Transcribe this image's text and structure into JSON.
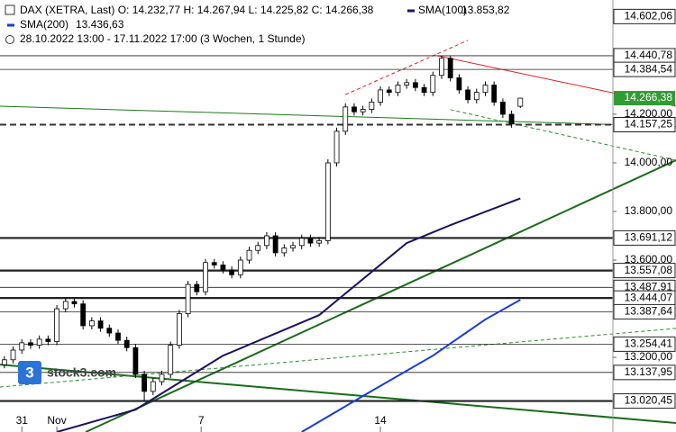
{
  "chart_data": {
    "type": "candlestick",
    "title": "DAX (XETRA, Last)",
    "quote": [
      {
        "key": "O:",
        "value": 14232.77,
        "label": "14.232,77"
      },
      {
        "key": "H:",
        "value": 14267.94,
        "label": "14.267,94"
      },
      {
        "key": "L:",
        "value": 14225.82,
        "label": "14.225,82"
      },
      {
        "key": "C:",
        "value": 14266.38,
        "label": "14.266,38"
      }
    ],
    "period": "28.10.2022 13:00 - 17.11.2022 17:00",
    "interval": "(3 Wochen, 1 Stunde)",
    "xlim": [
      -0.5,
      76.8
    ],
    "ylim": [
      12893,
      14670
    ],
    "xticks": [
      {
        "value": 2,
        "label": "31"
      },
      {
        "value": 6,
        "label": "Nov"
      },
      {
        "value": 22.5,
        "label": "7"
      },
      {
        "value": 43,
        "label": "14"
      }
    ],
    "yticks": [
      {
        "value": 13200,
        "label": "13.200,00"
      },
      {
        "value": 13600,
        "label": "13.600,00"
      },
      {
        "value": 13800,
        "label": "13.800,00"
      },
      {
        "value": 14000,
        "label": "14.000,00"
      },
      {
        "value": 14200,
        "label": "14.200,00"
      }
    ],
    "up_color": "#ffffff",
    "down_color": "#000000",
    "open": [
      13170,
      13190,
      13230,
      13260,
      13250,
      13275,
      13265,
      13400,
      13430,
      13420,
      13330,
      13350,
      13320,
      13300,
      13270,
      13240,
      13130,
      13060,
      13100,
      13130,
      13250,
      13380,
      13500,
      13470,
      13590,
      13580,
      13560,
      13540,
      13600,
      13640,
      13660,
      13700,
      13630,
      13650,
      13660,
      13690,
      13670,
      13680,
      14000,
      14130,
      14230,
      14210,
      14220,
      14250,
      14300,
      14290,
      14320,
      14330,
      14310,
      14290,
      14360,
      14430,
      14350,
      14300,
      14260,
      14290,
      14320,
      14250,
      14200,
      14232.77
    ],
    "high": [
      13205,
      13245,
      13275,
      13275,
      13290,
      13290,
      13415,
      13445,
      13445,
      13435,
      13365,
      13365,
      13335,
      13315,
      13285,
      13255,
      13145,
      13115,
      13145,
      13265,
      13395,
      13515,
      13515,
      13605,
      13605,
      13595,
      13575,
      13615,
      13655,
      13675,
      13715,
      13715,
      13665,
      13675,
      13705,
      13705,
      13695,
      14015,
      14145,
      14245,
      14245,
      14235,
      14265,
      14315,
      14315,
      14335,
      14345,
      14345,
      14325,
      14375,
      14440,
      14440,
      14365,
      14315,
      14305,
      14335,
      14335,
      14265,
      14215,
      14267.94
    ],
    "low": [
      13155,
      13175,
      13215,
      13235,
      13235,
      13250,
      13250,
      13385,
      13405,
      13315,
      13315,
      13305,
      13285,
      13255,
      13225,
      13115,
      13020,
      13045,
      13085,
      13115,
      13235,
      13365,
      13455,
      13455,
      13565,
      13545,
      13525,
      13525,
      13585,
      13625,
      13645,
      13615,
      13615,
      13635,
      13645,
      13655,
      13655,
      13665,
      13985,
      14115,
      14195,
      14195,
      14205,
      14235,
      14275,
      14275,
      14305,
      14295,
      14275,
      14275,
      14345,
      14335,
      14285,
      14245,
      14245,
      14275,
      14235,
      14185,
      14145,
      14225.82
    ],
    "close": [
      13190,
      13230,
      13260,
      13250,
      13275,
      13265,
      13400,
      13430,
      13420,
      13330,
      13350,
      13320,
      13300,
      13270,
      13240,
      13130,
      13060,
      13100,
      13130,
      13250,
      13380,
      13500,
      13470,
      13590,
      13580,
      13560,
      13540,
      13600,
      13640,
      13660,
      13700,
      13630,
      13650,
      13660,
      13690,
      13670,
      13680,
      14000,
      14130,
      14230,
      14210,
      14220,
      14250,
      14300,
      14290,
      14320,
      14330,
      14310,
      14290,
      14360,
      14430,
      14350,
      14300,
      14260,
      14290,
      14320,
      14250,
      14200,
      14160,
      14266.38
    ],
    "series": [
      {
        "name": "SMA(100)",
        "color": "#1f1060",
        "last": {
          "value": 13853.82,
          "label": "13.853,82"
        },
        "x": [
          6,
          15,
          25,
          36,
          46,
          51,
          59
        ],
        "values": [
          12893,
          12985,
          13207,
          13374,
          13670,
          13744,
          13853.82
        ]
      },
      {
        "name": "SMA(200)",
        "color": "#1a3cd0",
        "last": {
          "value": 13436.63,
          "label": "13.436,63"
        },
        "x": [
          34,
          41,
          49,
          55,
          59
        ],
        "values": [
          12893,
          13041,
          13207,
          13356,
          13436.63
        ]
      }
    ],
    "current": {
      "value": 14266.38,
      "label": "14.266,38",
      "color": "#2f9e2f"
    },
    "levels": [
      {
        "value": 14602.06,
        "label": "14.602,06",
        "style": "none"
      },
      {
        "value": 14440.78,
        "label": "14.440,78",
        "style": "thin"
      },
      {
        "value": 14384.54,
        "label": "14.384,54",
        "style": "thin"
      },
      {
        "value": 14157.25,
        "label": "14.157,25",
        "style": "dashed"
      },
      {
        "value": 13691.12,
        "label": "13.691,12",
        "style": "bold"
      },
      {
        "value": 13557.08,
        "label": "13.557,08",
        "style": "bold"
      },
      {
        "value": 13487.91,
        "label": "13.487,91",
        "style": "thin"
      },
      {
        "value": 13444.07,
        "label": "13.444,07",
        "style": "bold"
      },
      {
        "value": 13387.64,
        "label": "13.387,64",
        "style": "thin"
      },
      {
        "value": 13254.41,
        "label": "13.254,41",
        "style": "thin"
      },
      {
        "value": 13137.95,
        "label": "13.137,95",
        "style": "thin"
      },
      {
        "value": 13020.45,
        "label": "13.020,45",
        "style": "bold"
      }
    ],
    "drawings": [
      {
        "color": "#1b7a1b",
        "style": "solid",
        "x": [
          -0.5,
          76.8
        ],
        "y": [
          14233,
          14150
        ]
      },
      {
        "color": "#1b6b1b",
        "style": "thick",
        "x": [
          9.3,
          76.8
        ],
        "y": [
          12893,
          14011
        ]
      },
      {
        "color": "#1b6b1b",
        "style": "thick",
        "x": [
          -0.5,
          76.8
        ],
        "y": [
          13170,
          12930
        ]
      },
      {
        "color": "#2e8b2e",
        "style": "dashed",
        "x": [
          -0.5,
          76.8
        ],
        "y": [
          13078,
          13319
        ]
      },
      {
        "color": "#e02020",
        "style": "solid",
        "x": [
          49.5,
          76.8
        ],
        "y": [
          14441,
          14233
        ]
      },
      {
        "color": "#e02020",
        "style": "dashed",
        "x": [
          39,
          53
        ],
        "y": [
          14281,
          14504
        ]
      },
      {
        "color": "#2e8b2e",
        "style": "dashed",
        "x": [
          51,
          76.8
        ],
        "y": [
          14219,
          14011
        ]
      }
    ]
  },
  "logo": {
    "mark": "3",
    "text": "stock3.com"
  }
}
